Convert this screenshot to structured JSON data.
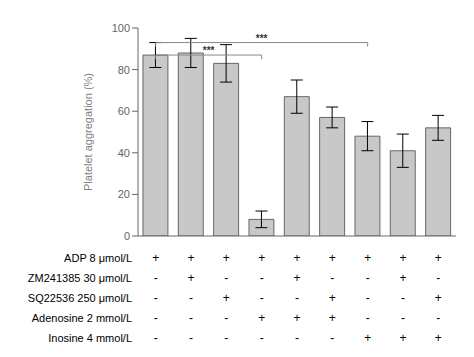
{
  "chart_data": {
    "type": "bar",
    "categories": [
      null,
      null,
      null,
      null,
      null,
      null,
      null,
      null,
      null
    ],
    "values": [
      87,
      88,
      83,
      8,
      67,
      57,
      48,
      41,
      52
    ],
    "errors": [
      6,
      7,
      9,
      4,
      8,
      5,
      7,
      8,
      6
    ],
    "color": "#c8c8c8",
    "ylabel": "Platelet aggregation (%)",
    "ylim": [
      0,
      100
    ],
    "yticks": [
      0,
      20,
      40,
      60,
      80,
      100
    ],
    "grid": false,
    "tick_labels": "y",
    "annotations": [
      {
        "x1": 0,
        "x2": 3,
        "y": 87,
        "label": "***"
      },
      {
        "x1": 0,
        "x2": 6,
        "y": 93,
        "label": "***"
      }
    ],
    "table": [
      {
        "label": "ADP 8 μmol/L",
        "values": [
          "+",
          "+",
          "+",
          "+",
          "+",
          "+",
          "+",
          "+",
          "+"
        ]
      },
      {
        "label": "ZM241385 30 μmol/L",
        "values": [
          "-",
          "+",
          "-",
          "-",
          "+",
          "-",
          "-",
          "+",
          "-"
        ]
      },
      {
        "label": "SQ22536 250 μmol/L",
        "values": [
          "-",
          "-",
          "+",
          "-",
          "-",
          "+",
          "-",
          "-",
          "+"
        ]
      },
      {
        "label": "Adenosine 2 mmol/L",
        "values": [
          "-",
          "-",
          "-",
          "+",
          "+",
          "+",
          "-",
          "-",
          "-"
        ]
      },
      {
        "label": "Inosine 4 mmol/L",
        "values": [
          "-",
          "-",
          "-",
          "-",
          "-",
          "-",
          "+",
          "+",
          "+"
        ]
      }
    ]
  }
}
